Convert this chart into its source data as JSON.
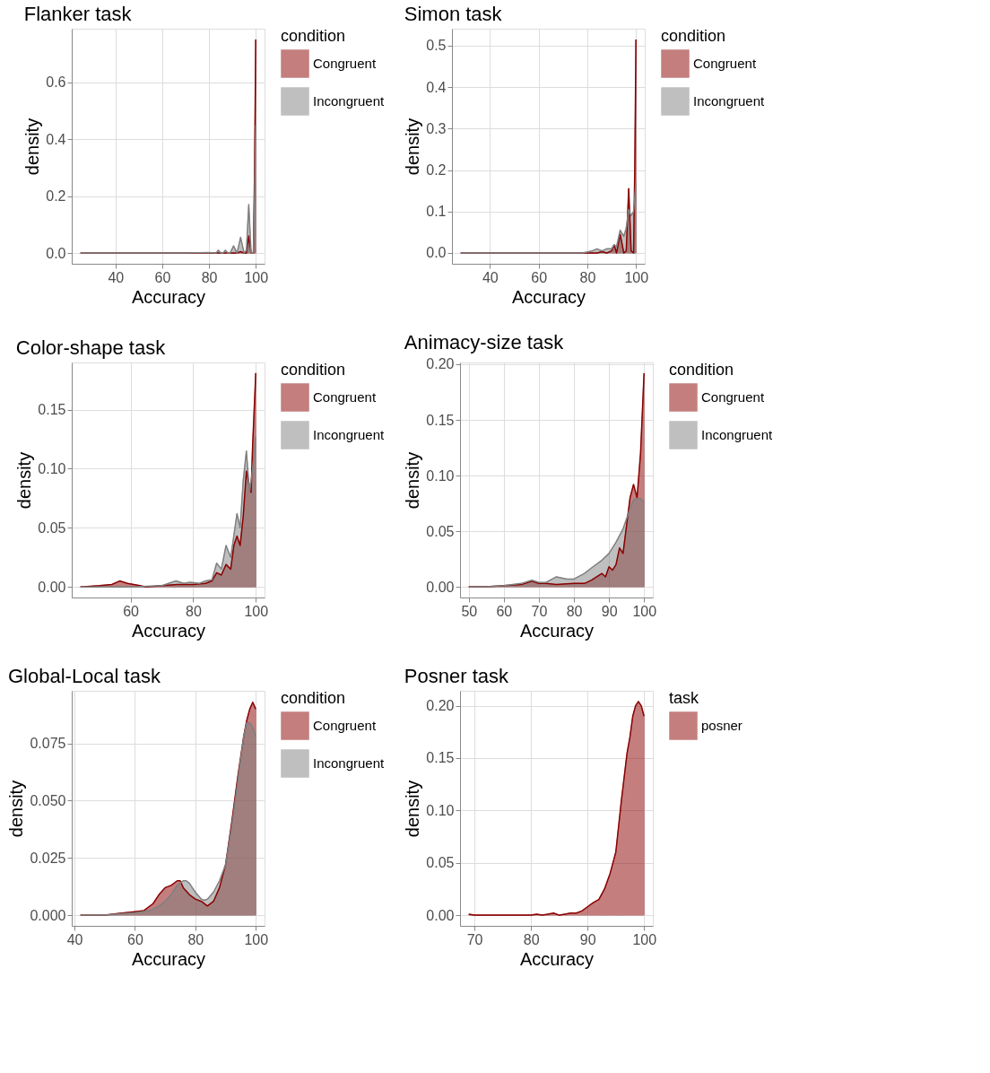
{
  "chart_data": [
    {
      "type": "area",
      "title": "Flanker task",
      "xlabel": "Accuracy",
      "ylabel": "density",
      "legend_title": "condition",
      "legend": "right",
      "grid": true,
      "xlim": [
        21.25,
        103.75
      ],
      "xticks": [
        40,
        60,
        80,
        100
      ],
      "ylim": [
        -0.0375,
        0.7875
      ],
      "yticks": [
        {
          "value": 0,
          "label": "0.0"
        },
        {
          "value": 0.2,
          "label": "0.2"
        },
        {
          "value": 0.4,
          "label": "0.4"
        },
        {
          "value": 0.6,
          "label": "0.6"
        }
      ],
      "series": [
        {
          "name": "Congruent",
          "color": "#8b0000",
          "x": [
            25,
            60,
            80,
            90,
            92,
            93.5,
            95,
            96,
            97,
            98,
            99,
            99.5,
            100
          ],
          "values": [
            0,
            0,
            0,
            0,
            0,
            0.005,
            0,
            0,
            0.06,
            0,
            0,
            0.3,
            0.75
          ]
        },
        {
          "name": "Incongruent",
          "color": "#808080",
          "x": [
            25,
            70,
            80,
            83,
            84,
            85,
            86,
            87,
            88,
            89,
            90.5,
            92,
            93.5,
            95,
            96,
            97,
            98,
            99,
            99.5,
            100
          ],
          "values": [
            0,
            0,
            0.002,
            0,
            0.01,
            0,
            0,
            0.01,
            0,
            0,
            0.025,
            0,
            0.055,
            0,
            0.01,
            0.17,
            0,
            0,
            0.2,
            0.45
          ]
        }
      ]
    },
    {
      "type": "area",
      "title": "Simon task",
      "xlabel": "Accuracy",
      "ylabel": "density",
      "legend_title": "condition",
      "legend": "right",
      "grid": true,
      "xlim": [
        24.4,
        103.6
      ],
      "xticks": [
        40,
        60,
        80,
        100
      ],
      "ylim": [
        -0.026,
        0.541
      ],
      "yticks": [
        {
          "value": 0,
          "label": "0.0"
        },
        {
          "value": 0.1,
          "label": "0.1"
        },
        {
          "value": 0.2,
          "label": "0.2"
        },
        {
          "value": 0.3,
          "label": "0.3"
        },
        {
          "value": 0.4,
          "label": "0.4"
        },
        {
          "value": 0.5,
          "label": "0.5"
        }
      ],
      "series": [
        {
          "name": "Congruent",
          "color": "#8b0000",
          "x": [
            28,
            70,
            80,
            84,
            86,
            88,
            90,
            91,
            92,
            93.5,
            95,
            96,
            97,
            98,
            99,
            99.5,
            100
          ],
          "values": [
            0,
            0,
            0,
            0,
            0.003,
            0,
            0.005,
            0.02,
            0,
            0.045,
            0,
            0.005,
            0.155,
            0.005,
            0,
            0.2,
            0.515
          ]
        },
        {
          "name": "Incongruent",
          "color": "#808080",
          "x": [
            28,
            70,
            78,
            82,
            84,
            86,
            88,
            90,
            91,
            92,
            93.5,
            95,
            96,
            97,
            98,
            99,
            100
          ],
          "values": [
            0,
            0,
            0,
            0.005,
            0.01,
            0.005,
            0.01,
            0.01,
            0.02,
            0.015,
            0.055,
            0.04,
            0.06,
            0.105,
            0.09,
            0.1,
            0.17
          ]
        }
      ]
    },
    {
      "type": "area",
      "title": "Color-shape task",
      "xlabel": "Accuracy",
      "ylabel": "density",
      "legend_title": "condition",
      "legend": "right",
      "grid": true,
      "xlim": [
        41.2,
        102.8
      ],
      "xticks": [
        60,
        80,
        100
      ],
      "ylim": [
        -0.009,
        0.19
      ],
      "yticks": [
        {
          "value": 0,
          "label": "0.00"
        },
        {
          "value": 0.05,
          "label": "0.05"
        },
        {
          "value": 0.1,
          "label": "0.10"
        },
        {
          "value": 0.15,
          "label": "0.15"
        }
      ],
      "series": [
        {
          "name": "Congruent",
          "color": "#8b0000",
          "x": [
            44,
            50,
            54,
            56.5,
            59,
            61,
            63,
            65,
            70,
            75,
            80,
            84,
            86,
            87.5,
            89,
            90.5,
            92,
            93,
            94,
            95,
            96,
            97,
            98,
            98.5,
            99,
            100
          ],
          "values": [
            0,
            0.001,
            0.002,
            0.005,
            0.003,
            0.002,
            0.001,
            0,
            0.001,
            0.002,
            0.002,
            0.003,
            0.005,
            0.012,
            0.01,
            0.019,
            0.015,
            0.035,
            0.043,
            0.035,
            0.06,
            0.098,
            0.085,
            0.08,
            0.12,
            0.181
          ]
        },
        {
          "name": "Incongruent",
          "color": "#808080",
          "x": [
            44,
            60,
            70,
            74.5,
            77,
            79,
            82,
            84,
            86,
            87.5,
            89,
            90.5,
            92,
            94,
            95,
            96,
            97,
            98,
            99,
            100
          ],
          "values": [
            0,
            0,
            0.001,
            0.005,
            0.003,
            0.004,
            0.003,
            0.005,
            0.006,
            0.02,
            0.015,
            0.035,
            0.025,
            0.062,
            0.05,
            0.09,
            0.115,
            0.08,
            0.1,
            0.127
          ]
        }
      ]
    },
    {
      "type": "area",
      "title": "Animacy-size task",
      "xlabel": "Accuracy",
      "ylabel": "density",
      "legend_title": "condition",
      "legend": "right",
      "grid": true,
      "xlim": [
        47.5,
        102.5
      ],
      "xticks": [
        50,
        60,
        70,
        80,
        90,
        100
      ],
      "ylim": [
        -0.0096,
        0.2016
      ],
      "yticks": [
        {
          "value": 0,
          "label": "0.00"
        },
        {
          "value": 0.05,
          "label": "0.05"
        },
        {
          "value": 0.1,
          "label": "0.10"
        },
        {
          "value": 0.15,
          "label": "0.15"
        },
        {
          "value": 0.2,
          "label": "0.20"
        }
      ],
      "series": [
        {
          "name": "Congruent",
          "color": "#8b0000",
          "x": [
            50,
            55,
            60,
            65,
            68,
            70,
            72,
            75,
            80,
            83,
            85,
            87,
            88,
            89,
            90,
            91,
            92,
            93,
            94,
            95,
            96,
            97,
            98,
            99,
            100
          ],
          "values": [
            0,
            0,
            0.001,
            0.002,
            0.005,
            0.003,
            0.003,
            0.002,
            0.003,
            0.003,
            0.006,
            0.01,
            0.012,
            0.009,
            0.018,
            0.015,
            0.02,
            0.035,
            0.03,
            0.055,
            0.08,
            0.092,
            0.08,
            0.12,
            0.192
          ]
        },
        {
          "name": "Incongruent",
          "color": "#808080",
          "x": [
            50,
            55,
            60,
            65,
            68,
            70,
            72,
            75,
            78,
            80,
            83,
            85,
            88,
            90,
            92,
            94,
            96,
            97,
            98,
            99,
            100
          ],
          "values": [
            0,
            0,
            0.001,
            0.003,
            0.006,
            0.004,
            0.004,
            0.009,
            0.007,
            0.007,
            0.012,
            0.017,
            0.024,
            0.03,
            0.04,
            0.052,
            0.07,
            0.078,
            0.079,
            0.079,
            0.076
          ]
        }
      ]
    },
    {
      "type": "area",
      "title": "Global-Local task",
      "xlabel": "Accuracy",
      "ylabel": "density",
      "legend_title": "condition",
      "legend": "right",
      "grid": true,
      "xlim": [
        39.1,
        102.9
      ],
      "xticks": [
        40,
        60,
        80,
        100
      ],
      "ylim": [
        -0.0047,
        0.098
      ],
      "yticks": [
        {
          "value": 0,
          "label": "0.000"
        },
        {
          "value": 0.025,
          "label": "0.025"
        },
        {
          "value": 0.05,
          "label": "0.050"
        },
        {
          "value": 0.075,
          "label": "0.075"
        }
      ],
      "series": [
        {
          "name": "Congruent",
          "color": "#8b0000",
          "x": [
            42,
            50,
            55,
            60,
            63,
            66,
            68,
            70,
            72,
            74,
            75,
            76,
            78,
            80,
            82,
            84,
            86,
            88,
            90,
            92,
            94,
            96,
            97,
            98,
            99,
            100
          ],
          "values": [
            0,
            0,
            0.0008,
            0.0015,
            0.002,
            0.005,
            0.009,
            0.012,
            0.013,
            0.015,
            0.015,
            0.012,
            0.009,
            0.007,
            0.006,
            0.004,
            0.006,
            0.012,
            0.022,
            0.04,
            0.06,
            0.078,
            0.085,
            0.09,
            0.093,
            0.09
          ]
        },
        {
          "name": "Incongruent",
          "color": "#808080",
          "x": [
            42,
            50,
            55,
            60,
            65,
            68,
            70,
            72,
            74,
            76,
            77,
            78,
            80,
            82,
            83,
            84,
            86,
            88,
            90,
            92,
            94,
            96,
            97,
            98,
            99,
            100
          ],
          "values": [
            0,
            0,
            0.0005,
            0.001,
            0.002,
            0.004,
            0.006,
            0.009,
            0.013,
            0.015,
            0.015,
            0.014,
            0.01,
            0.007,
            0.0065,
            0.007,
            0.01,
            0.015,
            0.022,
            0.038,
            0.058,
            0.078,
            0.084,
            0.084,
            0.082,
            0.078
          ]
        }
      ]
    },
    {
      "type": "area",
      "title": "Posner task",
      "xlabel": "Accuracy",
      "ylabel": "density",
      "legend_title": "task",
      "legend": "right",
      "grid": true,
      "xlim": [
        67.45,
        101.55
      ],
      "xticks": [
        70,
        80,
        90,
        100
      ],
      "ylim": [
        -0.0102,
        0.2142
      ],
      "yticks": [
        {
          "value": 0,
          "label": "0.00"
        },
        {
          "value": 0.05,
          "label": "0.05"
        },
        {
          "value": 0.1,
          "label": "0.10"
        },
        {
          "value": 0.15,
          "label": "0.15"
        },
        {
          "value": 0.2,
          "label": "0.20"
        }
      ],
      "series": [
        {
          "name": "posner",
          "color": "#8b0000",
          "x": [
            69,
            70,
            75,
            80,
            81,
            82,
            83,
            84,
            85,
            86,
            87,
            88,
            89,
            90,
            91,
            92,
            93,
            94,
            95,
            96,
            97,
            97.5,
            98,
            98.5,
            99,
            99.5,
            100
          ],
          "values": [
            0.001,
            0,
            0,
            0,
            0.001,
            0,
            0.001,
            0.002,
            0,
            0.001,
            0.002,
            0.002,
            0.004,
            0.008,
            0.012,
            0.015,
            0.025,
            0.04,
            0.06,
            0.11,
            0.155,
            0.17,
            0.19,
            0.2,
            0.204,
            0.2,
            0.19
          ]
        }
      ]
    }
  ]
}
